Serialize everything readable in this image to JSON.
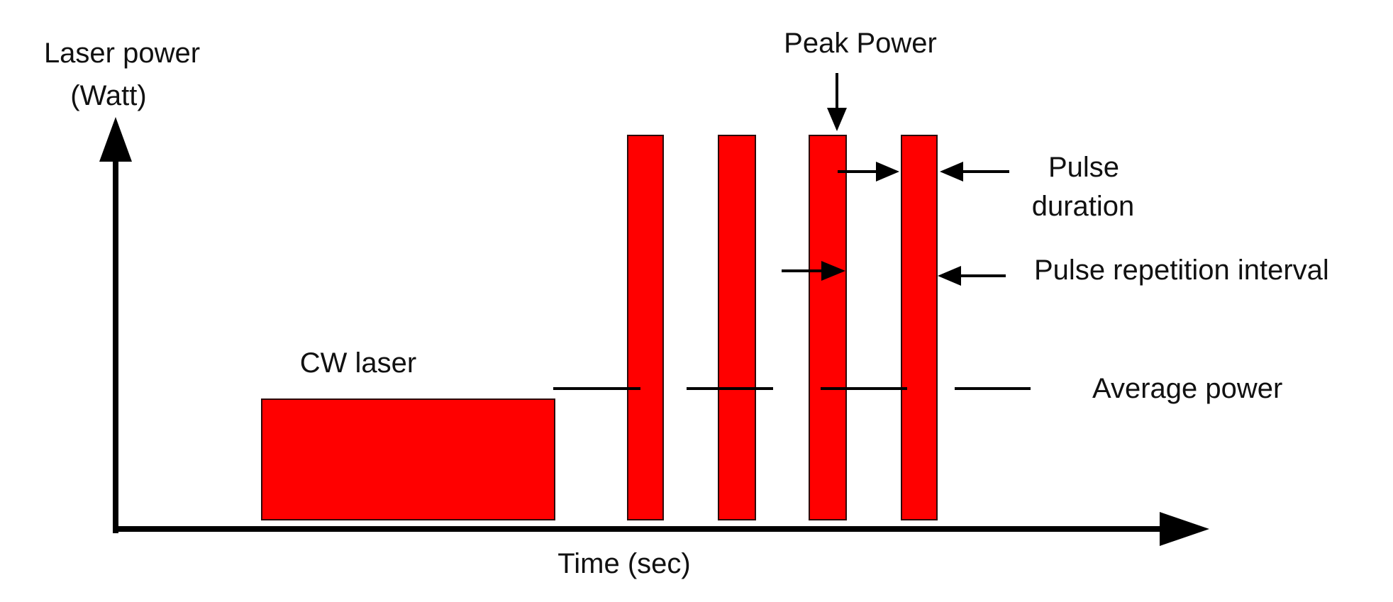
{
  "y_axis": {
    "label_line1": "Laser power",
    "label_line2": "(Watt)"
  },
  "x_axis": {
    "label": "Time (sec)"
  },
  "cw_block": {
    "label": "CW laser"
  },
  "pulses": {
    "count": 4
  },
  "annotations": {
    "peak_power": "Peak Power",
    "pulse_duration_line1": "Pulse",
    "pulse_duration_line2": "duration",
    "pulse_repetition_interval": "Pulse repetition interval",
    "average_power": "Average power"
  },
  "colors": {
    "fill": "#ff0000",
    "outline": "#2b0a0a",
    "ink": "#000000"
  }
}
